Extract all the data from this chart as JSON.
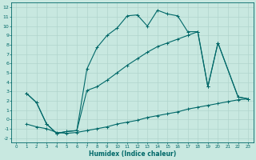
{
  "xlabel": "Humidex (Indice chaleur)",
  "bg_color": "#c8e8e0",
  "grid_color": "#b0d4cc",
  "line_color": "#006868",
  "xlim": [
    -0.5,
    23.5
  ],
  "ylim": [
    -2.5,
    12.5
  ],
  "xticks": [
    0,
    1,
    2,
    3,
    4,
    5,
    6,
    7,
    8,
    9,
    10,
    11,
    12,
    13,
    14,
    15,
    16,
    17,
    18,
    19,
    20,
    21,
    22,
    23
  ],
  "yticks": [
    -2,
    -1,
    0,
    1,
    2,
    3,
    4,
    5,
    6,
    7,
    8,
    9,
    10,
    11,
    12
  ],
  "curve1_x": [
    1,
    2,
    3,
    4,
    5,
    6,
    7,
    8,
    9,
    10,
    11,
    12,
    13,
    14,
    15,
    16,
    17,
    18,
    19,
    20,
    22,
    23
  ],
  "curve1_y": [
    2.8,
    1.8,
    -0.5,
    -1.5,
    -1.3,
    -1.2,
    5.4,
    7.7,
    9.0,
    9.8,
    11.1,
    11.2,
    10.0,
    11.7,
    11.3,
    11.1,
    9.4,
    9.4,
    3.5,
    8.2,
    2.4,
    2.2
  ],
  "curve2_x": [
    1,
    2,
    3,
    4,
    5,
    6,
    7,
    8,
    9,
    10,
    11,
    12,
    13,
    14,
    15,
    16,
    17,
    18,
    19,
    20,
    22,
    23
  ],
  "curve2_y": [
    2.8,
    1.8,
    -0.5,
    -1.5,
    -1.3,
    -1.2,
    3.1,
    3.5,
    4.2,
    5.0,
    5.8,
    6.5,
    7.2,
    7.8,
    8.2,
    8.6,
    9.0,
    9.4,
    3.5,
    8.2,
    2.4,
    2.2
  ],
  "curve3_x": [
    1,
    2,
    3,
    4,
    5,
    6,
    7,
    8,
    9,
    10,
    11,
    12,
    13,
    14,
    15,
    16,
    17,
    18,
    19,
    20,
    21,
    22,
    23
  ],
  "curve3_y": [
    -0.5,
    -0.8,
    -1.0,
    -1.4,
    -1.5,
    -1.4,
    -1.2,
    -1.0,
    -0.8,
    -0.5,
    -0.3,
    -0.1,
    0.2,
    0.4,
    0.6,
    0.8,
    1.1,
    1.3,
    1.5,
    1.7,
    1.9,
    2.1,
    2.2
  ]
}
